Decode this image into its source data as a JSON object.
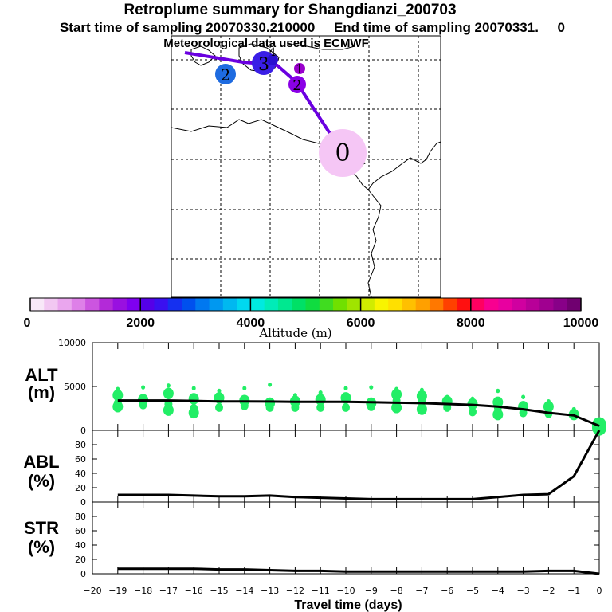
{
  "header": {
    "title": "Retroplume summary for Shangdianzi_200703",
    "line2_start": "Start time of sampling 20070330.210000",
    "line2_end": "End time of sampling 20070331.",
    "line2_tail": "0",
    "line3": "Meteorological data used is ECMWF"
  },
  "colors": {
    "trajectory": "#6600dd",
    "scatter": "#22ee66",
    "median_line": "#000000"
  },
  "map": {
    "markers": [
      {
        "label": "0",
        "lon_idx": 0,
        "size": "large",
        "color": "#f5c6f5"
      },
      {
        "label": "1",
        "color": "#9900cc"
      },
      {
        "label": "2",
        "color": "#8a00e6"
      },
      {
        "label": "2",
        "color": "#1e6be0"
      },
      {
        "label": "3",
        "color": "#3a1ee6"
      },
      {
        "label": "4",
        "color": "#2a10d0"
      }
    ]
  },
  "colorbar": {
    "title": "Altitude (m)",
    "tick_labels": [
      "0",
      "2000",
      "4000",
      "6000",
      "8000",
      "10000"
    ],
    "colors": [
      "#f8e8f8",
      "#f2c8f2",
      "#eaa6ee",
      "#de80e8",
      "#cc55e0",
      "#b32ad8",
      "#9910e0",
      "#7f00f0",
      "#5500e8",
      "#3a10f0",
      "#1530f0",
      "#0050ee",
      "#0078f0",
      "#0098f0",
      "#00b8f0",
      "#00d8f0",
      "#00eae0",
      "#00ecb8",
      "#00e890",
      "#00e066",
      "#10dc40",
      "#40dc20",
      "#70e000",
      "#a0e400",
      "#d0ec00",
      "#f8f400",
      "#ffe000",
      "#ffc000",
      "#ffa000",
      "#ff7800",
      "#ff4000",
      "#ff1010",
      "#ff0060",
      "#f80090",
      "#e800a0",
      "#d000a0",
      "#b80098",
      "#a00090",
      "#880088",
      "#700070"
    ]
  },
  "chart_data": [
    {
      "type": "scatter+line",
      "panel": "ALT",
      "ylabel": "ALT\n(m)",
      "ylabel_line1": "ALT",
      "ylabel_line2": "(m)",
      "ylim": [
        0,
        10000
      ],
      "yticks": [
        "0",
        "5000",
        "10000"
      ],
      "x": [
        -19,
        -18,
        -17,
        -16,
        -15,
        -14,
        -13,
        -12,
        -11,
        -10,
        -9,
        -8,
        -7,
        -6,
        -5,
        -4,
        -3,
        -2,
        -1,
        0
      ],
      "median": [
        3400,
        3400,
        3400,
        3350,
        3300,
        3300,
        3280,
        3250,
        3250,
        3250,
        3200,
        3150,
        3100,
        3000,
        2900,
        2700,
        2400,
        2000,
        1700,
        500
      ],
      "scatter": [
        {
          "x": -19,
          "y": [
            4700,
            4000,
            3100,
            2700
          ]
        },
        {
          "x": -18,
          "y": [
            4900,
            3500,
            2900
          ]
        },
        {
          "x": -17,
          "y": [
            5100,
            4200,
            3000,
            2300
          ]
        },
        {
          "x": -16,
          "y": [
            4800,
            3600,
            2500,
            2000
          ]
        },
        {
          "x": -15,
          "y": [
            4500,
            3700,
            2600
          ]
        },
        {
          "x": -14,
          "y": [
            4800,
            3400,
            2800
          ]
        },
        {
          "x": -13,
          "y": [
            5200,
            3100,
            2600
          ]
        },
        {
          "x": -12,
          "y": [
            4000,
            3300,
            2600
          ]
        },
        {
          "x": -11,
          "y": [
            4300,
            3500,
            2600
          ]
        },
        {
          "x": -10,
          "y": [
            4800,
            3700,
            2600
          ]
        },
        {
          "x": -9,
          "y": [
            4900,
            3100,
            2700
          ]
        },
        {
          "x": -8,
          "y": [
            4700,
            4100,
            3400,
            2600
          ]
        },
        {
          "x": -7,
          "y": [
            4600,
            3900,
            3200,
            2400
          ]
        },
        {
          "x": -6,
          "y": [
            3800,
            3300,
            2600
          ]
        },
        {
          "x": -5,
          "y": [
            3600,
            3000,
            2100
          ]
        },
        {
          "x": -4,
          "y": [
            4500,
            3200,
            2600,
            1800
          ]
        },
        {
          "x": -3,
          "y": [
            3800,
            2700,
            2000
          ]
        },
        {
          "x": -2,
          "y": [
            3300,
            2700,
            1900
          ]
        },
        {
          "x": -1,
          "y": [
            2400,
            1800
          ]
        },
        {
          "x": 0,
          "y": [
            900,
            600,
            300
          ]
        }
      ]
    },
    {
      "type": "line",
      "panel": "ABL",
      "ylabel_line1": "ABL",
      "ylabel_line2": "(%)",
      "ylim": [
        0,
        100
      ],
      "yticks": [
        "0",
        "20",
        "40",
        "60",
        "80"
      ],
      "x": [
        -19,
        -18,
        -17,
        -16,
        -15,
        -14,
        -13,
        -12,
        -11,
        -10,
        -9,
        -8,
        -7,
        -6,
        -5,
        -4,
        -3,
        -2,
        -1,
        0
      ],
      "values": [
        10,
        10,
        10,
        9,
        8,
        8,
        9,
        7,
        6,
        5,
        4,
        4,
        4,
        4,
        4,
        7,
        10,
        11,
        36,
        100
      ]
    },
    {
      "type": "line",
      "panel": "STR",
      "ylabel_line1": "STR",
      "ylabel_line2": "(%)",
      "ylim": [
        0,
        100
      ],
      "yticks": [
        "0",
        "20",
        "40",
        "60",
        "80"
      ],
      "x": [
        -19,
        -18,
        -17,
        -16,
        -15,
        -14,
        -13,
        -12,
        -11,
        -10,
        -9,
        -8,
        -7,
        -6,
        -5,
        -4,
        -3,
        -2,
        -1,
        0
      ],
      "values": [
        7,
        7,
        7,
        7,
        6,
        6,
        5,
        4,
        4,
        3,
        3,
        3,
        3,
        3,
        3,
        3,
        3,
        4,
        4,
        0
      ],
      "xlabel": "Travel time (days)",
      "xticks": [
        "−20",
        "−19",
        "−18",
        "−17",
        "−16",
        "−15",
        "−14",
        "−13",
        "−12",
        "−11",
        "−10",
        "−9",
        "−8",
        "−7",
        "−6",
        "−5",
        "−4",
        "−3",
        "−2",
        "−1",
        "0"
      ]
    }
  ]
}
